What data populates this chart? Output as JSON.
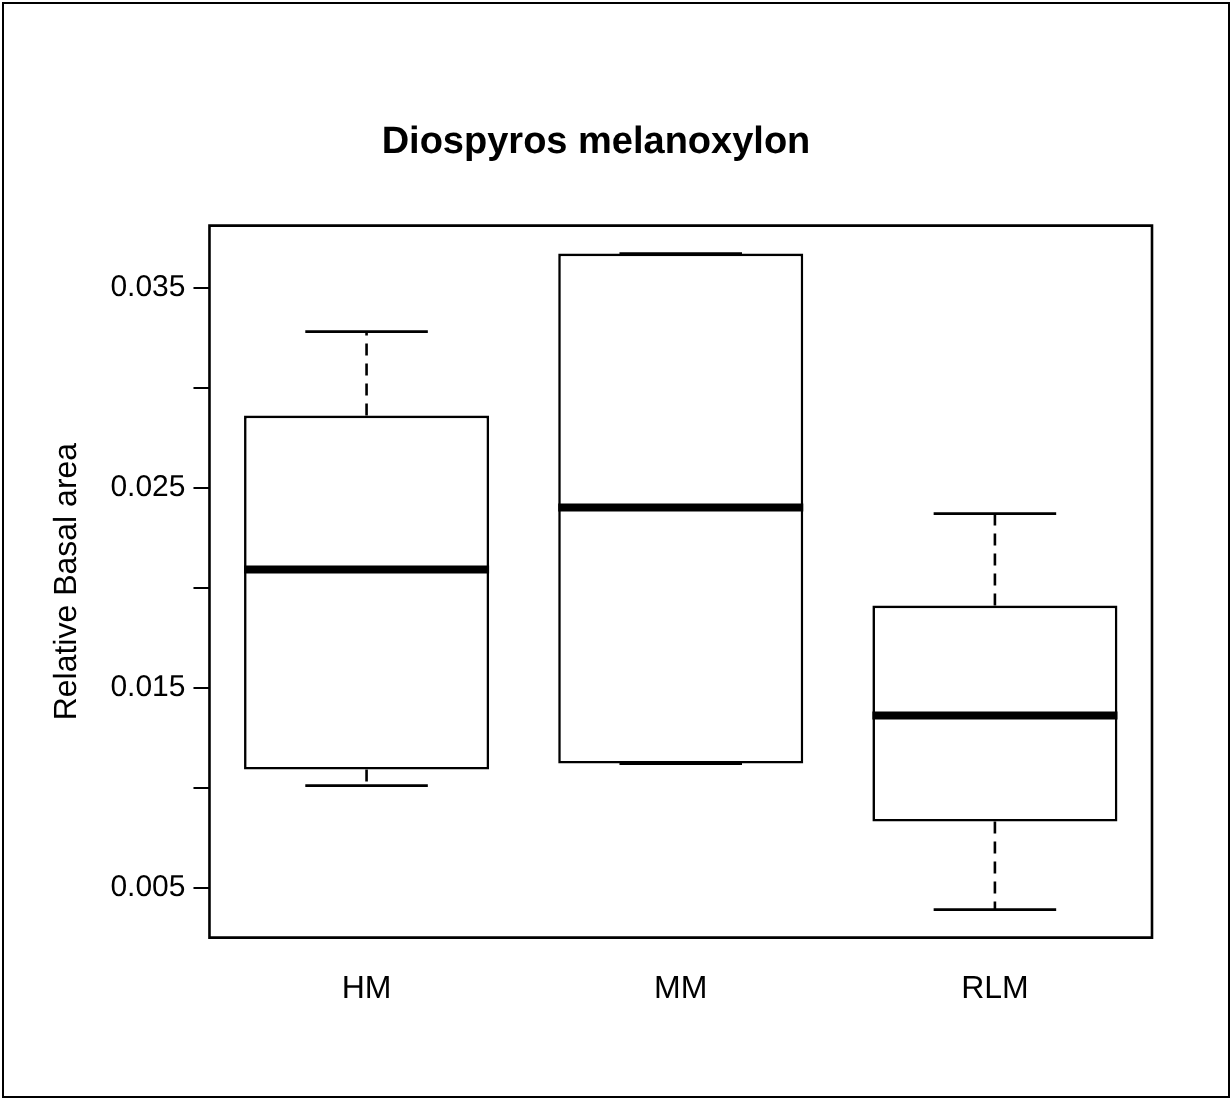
{
  "chart_data": {
    "type": "box",
    "title": "Diospyros melanoxylon",
    "ylabel": "Relative Basal area",
    "categories": [
      "HM",
      "MM",
      "RLM"
    ],
    "boxes": [
      {
        "low": 0.0101,
        "q1": 0.0109,
        "median": 0.0209,
        "q3": 0.0286,
        "high": 0.0328
      },
      {
        "low": 0.0112,
        "q1": 0.0112,
        "median": 0.024,
        "q3": 0.0367,
        "high": 0.0367
      },
      {
        "low": 0.0039,
        "q1": 0.0083,
        "median": 0.0136,
        "q3": 0.0191,
        "high": 0.0237
      }
    ],
    "ylim": [
      0.0025,
      0.0381
    ],
    "yticks": [
      0.005,
      {
        "value": 0.01,
        "label": null
      },
      0.015,
      {
        "value": 0.02,
        "label": null
      },
      0.025,
      {
        "value": 0.03,
        "label": null
      },
      0.035
    ],
    "grid": false
  }
}
